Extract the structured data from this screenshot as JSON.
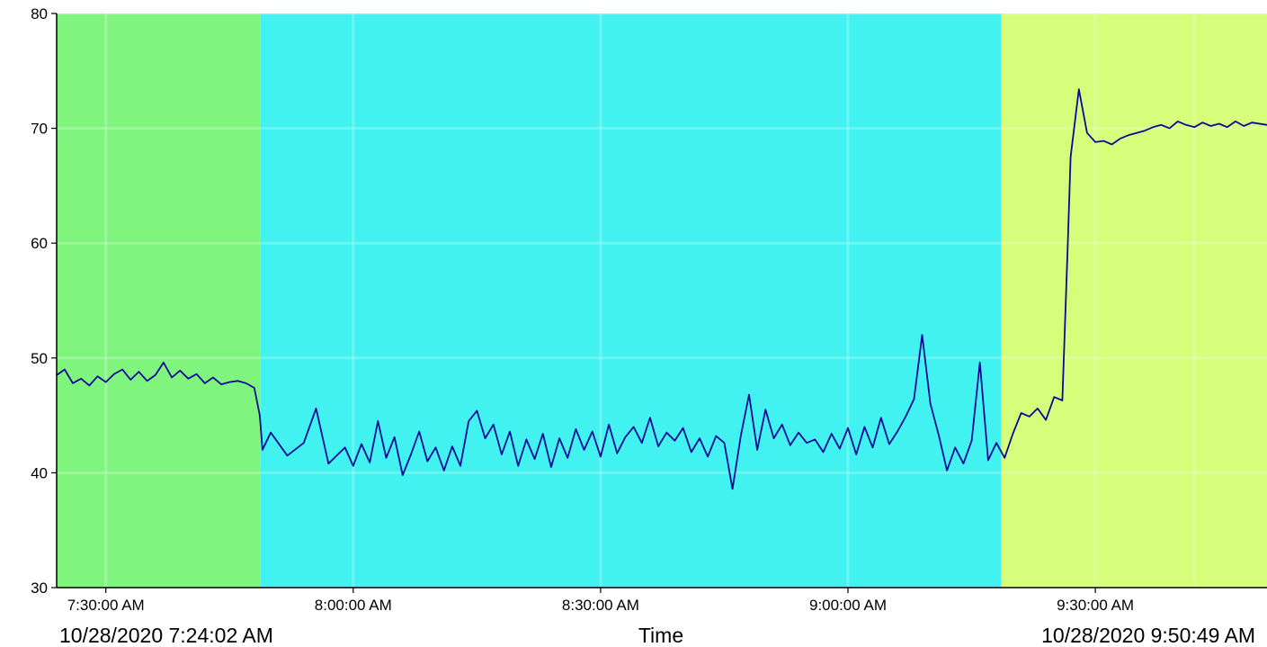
{
  "chart_data": {
    "type": "line",
    "title": "",
    "xlabel": "Time",
    "ylabel": "",
    "ylim": [
      30,
      80
    ],
    "y_ticks": [
      30,
      40,
      50,
      60,
      70,
      80
    ],
    "y_tick_labels": [
      "30",
      "40",
      "50",
      "60",
      "70",
      "80"
    ],
    "x_start": "10/28/2020 7:24:02 AM",
    "x_end": "10/28/2020 9:50:49 AM",
    "x_range": [
      "07:24:02",
      "09:50:49"
    ],
    "x_ticks": [
      {
        "time": "07:30:00",
        "label": "7:30:00 AM"
      },
      {
        "time": "08:00:00",
        "label": "8:00:00 AM"
      },
      {
        "time": "08:30:00",
        "label": "8:30:00 AM"
      },
      {
        "time": "09:00:00",
        "label": "9:00:00 AM"
      },
      {
        "time": "09:30:00",
        "label": "9:30:00 AM"
      }
    ],
    "x_minor_gridlines": [
      "07:30:00",
      "08:00:00",
      "08:30:00",
      "09:00:00",
      "09:30:00",
      "09:42:00"
    ],
    "grid": true,
    "background_bands": [
      {
        "from": "07:24:02",
        "to": "07:48:45",
        "color": "#80f57e"
      },
      {
        "from": "07:48:45",
        "to": "09:18:35",
        "color": "#41f2f0"
      },
      {
        "from": "09:18:35",
        "to": "09:50:49",
        "color": "#d6fe7b"
      }
    ],
    "series": [
      {
        "color": "#0a0a96",
        "points": [
          [
            "07:24:02",
            48.5
          ],
          [
            "07:25:00",
            49.0
          ],
          [
            "07:26:00",
            47.8
          ],
          [
            "07:27:00",
            48.2
          ],
          [
            "07:28:00",
            47.6
          ],
          [
            "07:29:00",
            48.4
          ],
          [
            "07:30:00",
            47.9
          ],
          [
            "07:31:00",
            48.6
          ],
          [
            "07:32:00",
            49.0
          ],
          [
            "07:33:00",
            48.1
          ],
          [
            "07:34:00",
            48.8
          ],
          [
            "07:35:00",
            48.0
          ],
          [
            "07:36:00",
            48.5
          ],
          [
            "07:37:00",
            49.6
          ],
          [
            "07:38:00",
            48.3
          ],
          [
            "07:39:00",
            48.9
          ],
          [
            "07:40:00",
            48.2
          ],
          [
            "07:41:00",
            48.6
          ],
          [
            "07:42:00",
            47.8
          ],
          [
            "07:43:00",
            48.3
          ],
          [
            "07:44:00",
            47.7
          ],
          [
            "07:45:00",
            47.9
          ],
          [
            "07:46:00",
            48.0
          ],
          [
            "07:47:00",
            47.8
          ],
          [
            "07:48:00",
            47.4
          ],
          [
            "07:48:40",
            45.0
          ],
          [
            "07:49:00",
            42.0
          ],
          [
            "07:50:00",
            43.5
          ],
          [
            "07:52:00",
            41.5
          ],
          [
            "07:54:00",
            42.6
          ],
          [
            "07:55:30",
            45.6
          ],
          [
            "07:57:00",
            40.8
          ],
          [
            "07:59:00",
            42.2
          ],
          [
            "08:00:00",
            40.6
          ],
          [
            "08:01:00",
            42.5
          ],
          [
            "08:02:00",
            40.9
          ],
          [
            "08:03:00",
            44.5
          ],
          [
            "08:04:00",
            41.3
          ],
          [
            "08:05:00",
            43.1
          ],
          [
            "08:06:00",
            39.8
          ],
          [
            "08:07:00",
            41.6
          ],
          [
            "08:08:00",
            43.6
          ],
          [
            "08:09:00",
            41.0
          ],
          [
            "08:10:00",
            42.2
          ],
          [
            "08:11:00",
            40.2
          ],
          [
            "08:12:00",
            42.3
          ],
          [
            "08:13:00",
            40.6
          ],
          [
            "08:14:00",
            44.5
          ],
          [
            "08:15:00",
            45.4
          ],
          [
            "08:16:00",
            43.0
          ],
          [
            "08:17:00",
            44.2
          ],
          [
            "08:18:00",
            41.6
          ],
          [
            "08:19:00",
            43.6
          ],
          [
            "08:20:00",
            40.6
          ],
          [
            "08:21:00",
            42.9
          ],
          [
            "08:22:00",
            41.2
          ],
          [
            "08:23:00",
            43.4
          ],
          [
            "08:24:00",
            40.5
          ],
          [
            "08:25:00",
            43.0
          ],
          [
            "08:26:00",
            41.3
          ],
          [
            "08:27:00",
            43.8
          ],
          [
            "08:28:00",
            42.0
          ],
          [
            "08:29:00",
            43.6
          ],
          [
            "08:30:00",
            41.4
          ],
          [
            "08:31:00",
            44.2
          ],
          [
            "08:32:00",
            41.7
          ],
          [
            "08:33:00",
            43.1
          ],
          [
            "08:34:00",
            44.0
          ],
          [
            "08:35:00",
            42.6
          ],
          [
            "08:36:00",
            44.8
          ],
          [
            "08:37:00",
            42.3
          ],
          [
            "08:38:00",
            43.5
          ],
          [
            "08:39:00",
            42.8
          ],
          [
            "08:40:00",
            43.9
          ],
          [
            "08:41:00",
            41.8
          ],
          [
            "08:42:00",
            43.0
          ],
          [
            "08:43:00",
            41.4
          ],
          [
            "08:44:00",
            43.2
          ],
          [
            "08:45:00",
            42.6
          ],
          [
            "08:46:00",
            38.6
          ],
          [
            "08:47:00",
            43.2
          ],
          [
            "08:48:00",
            46.8
          ],
          [
            "08:49:00",
            42.0
          ],
          [
            "08:50:00",
            45.5
          ],
          [
            "08:51:00",
            43.0
          ],
          [
            "08:52:00",
            44.2
          ],
          [
            "08:53:00",
            42.4
          ],
          [
            "08:54:00",
            43.5
          ],
          [
            "08:55:00",
            42.6
          ],
          [
            "08:56:00",
            42.9
          ],
          [
            "08:57:00",
            41.8
          ],
          [
            "08:58:00",
            43.4
          ],
          [
            "08:59:00",
            42.1
          ],
          [
            "09:00:00",
            43.9
          ],
          [
            "09:01:00",
            41.6
          ],
          [
            "09:02:00",
            44.0
          ],
          [
            "09:03:00",
            42.2
          ],
          [
            "09:04:00",
            44.8
          ],
          [
            "09:05:00",
            42.5
          ],
          [
            "09:06:00",
            43.6
          ],
          [
            "09:07:00",
            44.9
          ],
          [
            "09:08:00",
            46.4
          ],
          [
            "09:09:00",
            52.0
          ],
          [
            "09:10:00",
            46.0
          ],
          [
            "09:11:00",
            43.3
          ],
          [
            "09:12:00",
            40.2
          ],
          [
            "09:13:00",
            42.2
          ],
          [
            "09:14:00",
            40.8
          ],
          [
            "09:15:00",
            42.8
          ],
          [
            "09:16:00",
            49.6
          ],
          [
            "09:17:00",
            41.1
          ],
          [
            "09:18:00",
            42.6
          ],
          [
            "09:19:00",
            41.3
          ],
          [
            "09:20:00",
            43.4
          ],
          [
            "09:21:00",
            45.2
          ],
          [
            "09:22:00",
            44.9
          ],
          [
            "09:23:00",
            45.6
          ],
          [
            "09:24:00",
            44.6
          ],
          [
            "09:25:00",
            46.6
          ],
          [
            "09:26:00",
            46.3
          ],
          [
            "09:26:40",
            60.0
          ],
          [
            "09:27:00",
            67.5
          ],
          [
            "09:28:00",
            73.4
          ],
          [
            "09:29:00",
            69.6
          ],
          [
            "09:30:00",
            68.8
          ],
          [
            "09:31:00",
            68.9
          ],
          [
            "09:32:00",
            68.6
          ],
          [
            "09:33:00",
            69.1
          ],
          [
            "09:34:00",
            69.4
          ],
          [
            "09:35:00",
            69.6
          ],
          [
            "09:36:00",
            69.8
          ],
          [
            "09:37:00",
            70.1
          ],
          [
            "09:38:00",
            70.3
          ],
          [
            "09:39:00",
            70.0
          ],
          [
            "09:40:00",
            70.6
          ],
          [
            "09:41:00",
            70.3
          ],
          [
            "09:42:00",
            70.1
          ],
          [
            "09:43:00",
            70.5
          ],
          [
            "09:44:00",
            70.2
          ],
          [
            "09:45:00",
            70.4
          ],
          [
            "09:46:00",
            70.1
          ],
          [
            "09:47:00",
            70.6
          ],
          [
            "09:48:00",
            70.2
          ],
          [
            "09:49:00",
            70.5
          ],
          [
            "09:50:49",
            70.3
          ]
        ]
      }
    ]
  }
}
